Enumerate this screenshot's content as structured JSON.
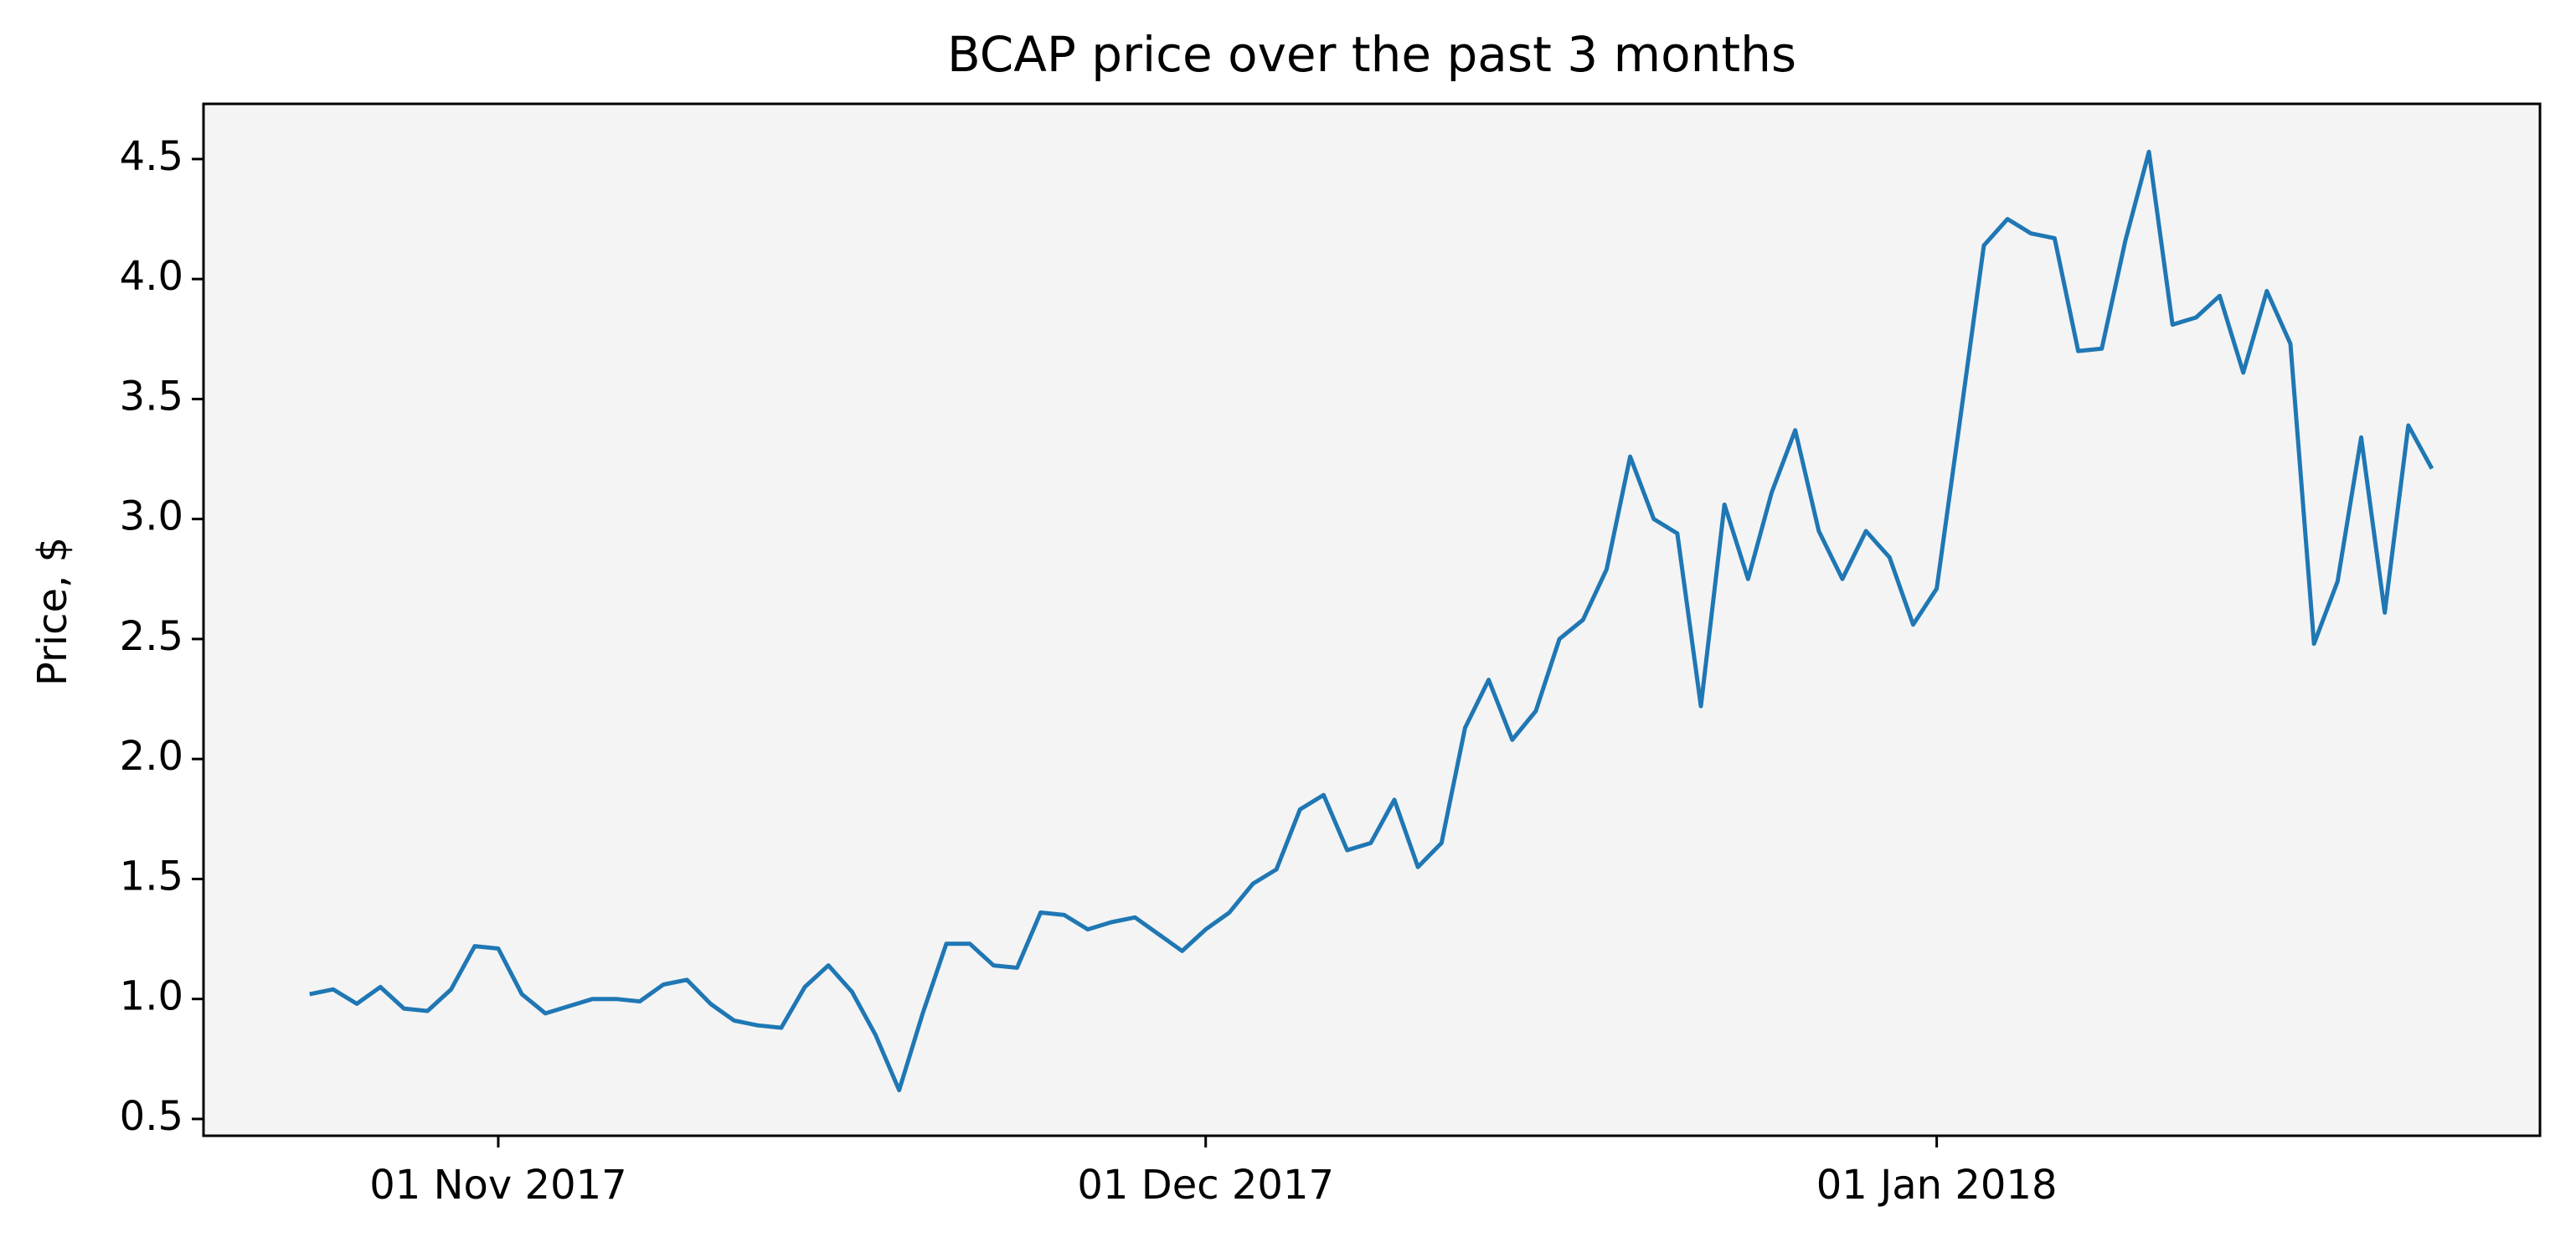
{
  "chart_data": {
    "type": "line",
    "title": "BCAP price over the past 3 months",
    "ylabel": "Price, $",
    "x": [
      "2017-10-24",
      "2017-10-25",
      "2017-10-26",
      "2017-10-27",
      "2017-10-28",
      "2017-10-29",
      "2017-10-30",
      "2017-10-31",
      "2017-11-01",
      "2017-11-02",
      "2017-11-03",
      "2017-11-04",
      "2017-11-05",
      "2017-11-06",
      "2017-11-07",
      "2017-11-08",
      "2017-11-09",
      "2017-11-10",
      "2017-11-11",
      "2017-11-12",
      "2017-11-13",
      "2017-11-14",
      "2017-11-15",
      "2017-11-16",
      "2017-11-17",
      "2017-11-18",
      "2017-11-19",
      "2017-11-20",
      "2017-11-21",
      "2017-11-22",
      "2017-11-23",
      "2017-11-24",
      "2017-11-25",
      "2017-11-26",
      "2017-11-27",
      "2017-11-28",
      "2017-11-29",
      "2017-11-30",
      "2017-12-01",
      "2017-12-02",
      "2017-12-03",
      "2017-12-04",
      "2017-12-05",
      "2017-12-06",
      "2017-12-07",
      "2017-12-08",
      "2017-12-09",
      "2017-12-10",
      "2017-12-11",
      "2017-12-12",
      "2017-12-13",
      "2017-12-14",
      "2017-12-15",
      "2017-12-16",
      "2017-12-17",
      "2017-12-18",
      "2017-12-19",
      "2017-12-20",
      "2017-12-21",
      "2017-12-22",
      "2017-12-23",
      "2017-12-24",
      "2017-12-25",
      "2017-12-26",
      "2017-12-27",
      "2017-12-28",
      "2017-12-29",
      "2017-12-30",
      "2017-12-31",
      "2018-01-01",
      "2018-01-02",
      "2018-01-03",
      "2018-01-04",
      "2018-01-05",
      "2018-01-06",
      "2018-01-07",
      "2018-01-08",
      "2018-01-09",
      "2018-01-10",
      "2018-01-11",
      "2018-01-12",
      "2018-01-13",
      "2018-01-14",
      "2018-01-15",
      "2018-01-16",
      "2018-01-17",
      "2018-01-18",
      "2018-01-19",
      "2018-01-20",
      "2018-01-21",
      "2018-01-22"
    ],
    "values": [
      1.02,
      1.04,
      0.98,
      1.05,
      0.96,
      0.95,
      1.04,
      1.22,
      1.21,
      1.02,
      0.94,
      0.97,
      1.0,
      1.0,
      0.99,
      1.06,
      1.08,
      0.98,
      0.91,
      0.89,
      0.88,
      1.05,
      1.14,
      1.03,
      0.85,
      0.62,
      0.94,
      1.23,
      1.23,
      1.14,
      1.13,
      1.36,
      1.35,
      1.29,
      1.32,
      1.34,
      1.27,
      1.2,
      1.29,
      1.36,
      1.48,
      1.54,
      1.79,
      1.85,
      1.62,
      1.65,
      1.83,
      1.55,
      1.65,
      2.13,
      2.33,
      2.08,
      2.2,
      2.5,
      2.58,
      2.79,
      3.26,
      3.0,
      2.94,
      2.22,
      3.06,
      2.75,
      3.11,
      3.37,
      2.95,
      2.75,
      2.95,
      2.84,
      2.56,
      2.71,
      3.42,
      4.14,
      4.25,
      4.19,
      4.17,
      3.7,
      3.71,
      4.16,
      4.53,
      3.81,
      3.84,
      3.93,
      3.61,
      3.95,
      3.73,
      2.48,
      2.74,
      3.34,
      2.61,
      3.39,
      3.21
    ],
    "color": "#1f77b4",
    "xlim": [
      "2017-10-19T12:00:00Z",
      "2018-01-26T14:00:00Z"
    ],
    "xticks": [
      {
        "value": "2017-11-01",
        "label": "01 Nov 2017"
      },
      {
        "value": "2017-12-01",
        "label": "01 Dec 2017"
      },
      {
        "value": "2018-01-01",
        "label": "01 Jan 2018"
      }
    ],
    "ylim": [
      0.43,
      4.73
    ],
    "yticks": [
      0.5,
      {
        "value": 1,
        "label": "1.0"
      },
      1.5,
      {
        "value": 2,
        "label": "2.0"
      },
      2.5,
      {
        "value": 3,
        "label": "3.0"
      },
      3.5,
      {
        "value": 4,
        "label": "4.0"
      },
      4.5
    ]
  }
}
